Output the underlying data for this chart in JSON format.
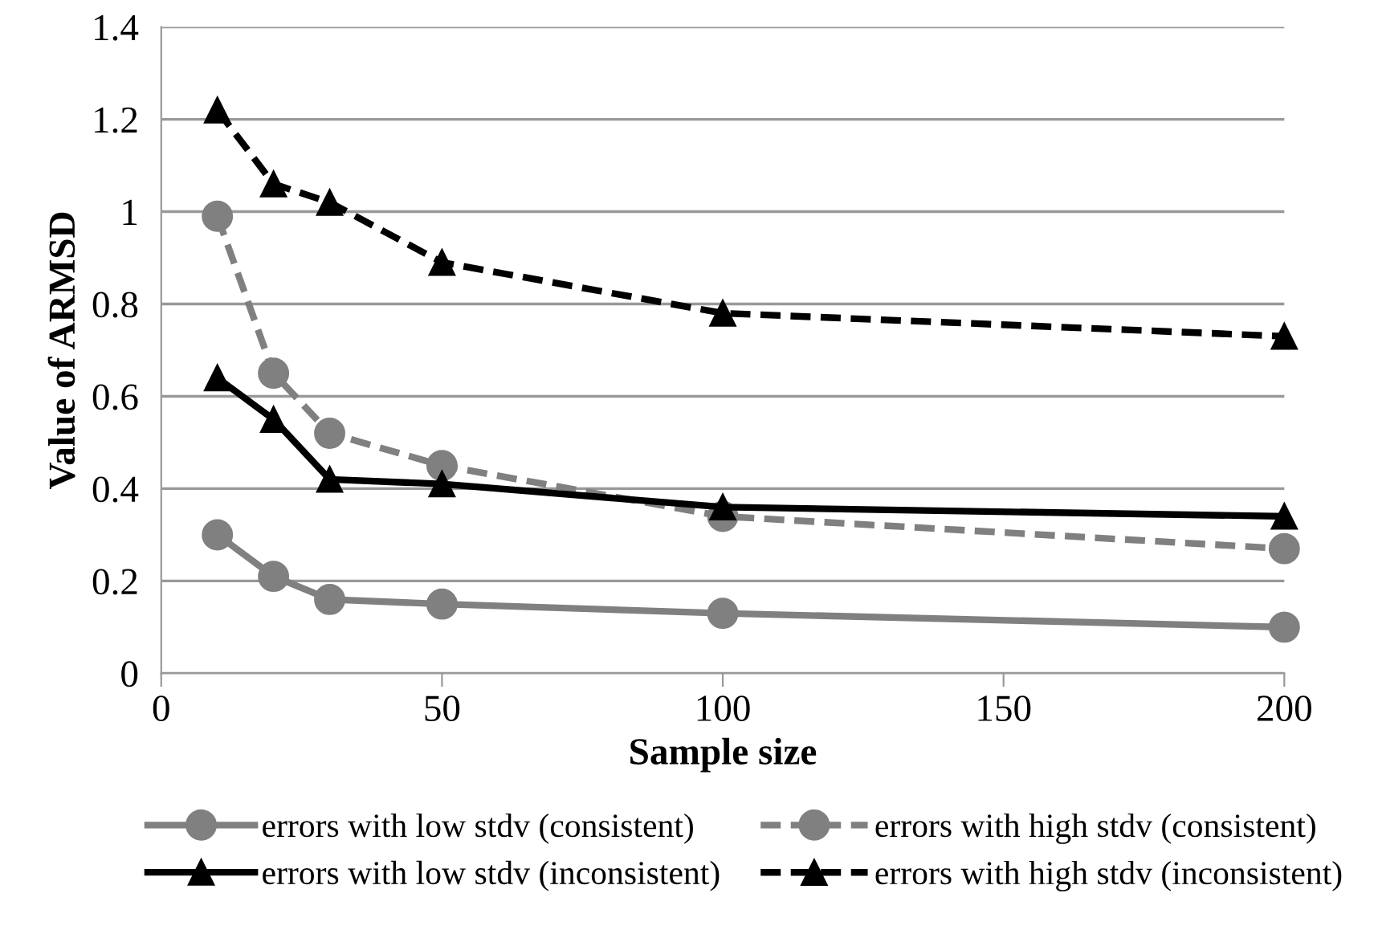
{
  "chart_data": {
    "type": "line",
    "xlabel": "Sample size",
    "ylabel": "Value of ARMSD",
    "x": [
      10,
      20,
      30,
      50,
      100,
      200
    ],
    "series": [
      {
        "name": "errors with low stdv (consistent)",
        "color": "#808080",
        "marker": "circle",
        "line_style": "solid",
        "values": [
          0.3,
          0.21,
          0.16,
          0.15,
          0.13,
          0.1
        ]
      },
      {
        "name": "errors with high stdv (consistent)",
        "color": "#808080",
        "marker": "circle",
        "line_style": "dashed",
        "values": [
          0.99,
          0.65,
          0.52,
          0.45,
          0.34,
          0.27
        ]
      },
      {
        "name": "errors with low stdv (inconsistent)",
        "color": "#000000",
        "marker": "triangle",
        "line_style": "solid",
        "values": [
          0.64,
          0.55,
          0.42,
          0.41,
          0.36,
          0.34
        ]
      },
      {
        "name": "errors with high stdv (inconsistent)",
        "color": "#000000",
        "marker": "triangle",
        "line_style": "dashed",
        "values": [
          1.22,
          1.06,
          1.02,
          0.89,
          0.78,
          0.73
        ]
      }
    ],
    "xlim": [
      0,
      200
    ],
    "xticks": [
      0,
      50,
      100,
      150,
      200
    ],
    "ylim": [
      0,
      1.4
    ],
    "yticks": [
      0,
      0.2,
      0.4,
      0.6,
      0.8,
      1,
      1.2,
      1.4
    ],
    "grid": "y",
    "legend": "bottom"
  }
}
